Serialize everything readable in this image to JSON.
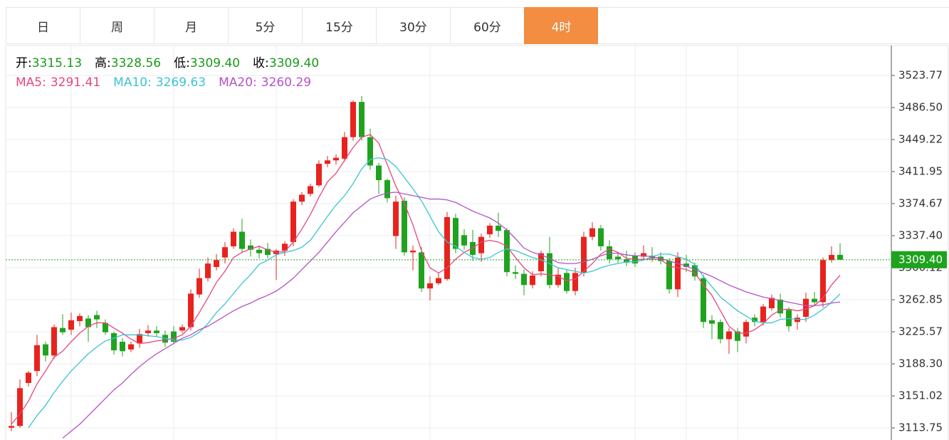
{
  "tabs": {
    "items": [
      "日",
      "周",
      "月",
      "5分",
      "15分",
      "30分",
      "60分",
      "4时"
    ],
    "active": 7,
    "active_color": "#f28d42"
  },
  "chart_data": {
    "type": "candlestick",
    "info": {
      "labels": [
        "开:",
        "高:",
        "低:",
        "收:"
      ],
      "value_labels": [
        "3315.13",
        "3328.56",
        "3309.40",
        "3309.40"
      ],
      "color": "#1a9a1a"
    },
    "up_color": "#e8231e",
    "down_color": "#1fa31f",
    "open": [
      3114,
      3116,
      3166,
      3180,
      3211,
      3198,
      3230,
      3228,
      3238,
      3241,
      3245,
      3236,
      3224,
      3214,
      3205,
      3212,
      3224,
      3227,
      3222,
      3226,
      3227,
      3231,
      3269,
      3288,
      3301,
      3312,
      3325,
      3342,
      3326,
      3321,
      3322,
      3316,
      3320,
      3330,
      3377,
      3386,
      3396,
      3421,
      3425,
      3427,
      3452,
      3493,
      3452,
      3419,
      3402,
      3337,
      3378,
      3318,
      3318,
      3276,
      3282,
      3287,
      3358,
      3338,
      3330,
      3317,
      3339,
      3349,
      3344,
      3295,
      3293,
      3280,
      3296,
      3317,
      3280,
      3294,
      3273,
      3294,
      3336,
      3346,
      3325,
      3313,
      3310,
      3314,
      3313,
      3314,
      3313,
      3308,
      3275,
      3305,
      3303,
      3288,
      3239,
      3237,
      3217,
      3226,
      3220,
      3242,
      3237,
      3253,
      3263,
      3251,
      3237,
      3243,
      3264,
      3260,
      3309,
      3315.13
    ],
    "high": [
      3132,
      3170,
      3180,
      3222,
      3214,
      3234,
      3246,
      3248,
      3247,
      3245,
      3250,
      3240,
      3226,
      3218,
      3214,
      3229,
      3233,
      3232,
      3227,
      3232,
      3234,
      3275,
      3299,
      3312,
      3316,
      3330,
      3346,
      3357,
      3333,
      3326,
      3329,
      3322,
      3331,
      3380,
      3388,
      3398,
      3425,
      3430,
      3432,
      3458,
      3495,
      3500,
      3462,
      3422,
      3404,
      3384,
      3382,
      3326,
      3324,
      3290,
      3294,
      3365,
      3363,
      3345,
      3344,
      3340,
      3352,
      3364,
      3346,
      3303,
      3298,
      3296,
      3320,
      3336,
      3300,
      3298,
      3300,
      3342,
      3353,
      3350,
      3332,
      3318,
      3320,
      3318,
      3326,
      3324,
      3318,
      3311,
      3318,
      3315,
      3306,
      3292,
      3245,
      3240,
      3230,
      3230,
      3240,
      3246,
      3258,
      3269,
      3270,
      3254,
      3246,
      3271,
      3272,
      3312,
      3325,
      3328.56
    ],
    "low": [
      3110,
      3114,
      3162,
      3174,
      3191,
      3194,
      3222,
      3222,
      3232,
      3214,
      3230,
      3222,
      3199,
      3197,
      3202,
      3207,
      3220,
      3220,
      3208,
      3211,
      3224,
      3227,
      3265,
      3284,
      3297,
      3305,
      3322,
      3318,
      3313,
      3311,
      3311,
      3286,
      3314,
      3325,
      3373,
      3383,
      3394,
      3417,
      3420,
      3424,
      3448,
      3448,
      3414,
      3386,
      3376,
      3322,
      3314,
      3297,
      3272,
      3262,
      3280,
      3285,
      3317,
      3321,
      3308,
      3307,
      3335,
      3336,
      3290,
      3287,
      3268,
      3276,
      3290,
      3276,
      3277,
      3270,
      3268,
      3290,
      3332,
      3320,
      3305,
      3306,
      3302,
      3301,
      3309,
      3307,
      3304,
      3270,
      3266,
      3295,
      3285,
      3230,
      3217,
      3212,
      3200,
      3202,
      3212,
      3232,
      3233,
      3250,
      3242,
      3226,
      3228,
      3237,
      3256,
      3254,
      3306,
      3309.4
    ],
    "close": [
      3116,
      3160,
      3178,
      3210,
      3198,
      3231,
      3225,
      3239,
      3244,
      3231,
      3240,
      3225,
      3204,
      3203,
      3211,
      3223,
      3227,
      3224,
      3213,
      3214,
      3231,
      3270,
      3288,
      3305,
      3309,
      3324,
      3342,
      3322,
      3321,
      3317,
      3315,
      3320,
      3328,
      3377,
      3385,
      3395,
      3421,
      3425,
      3428,
      3452,
      3493,
      3452,
      3419,
      3402,
      3381,
      3377,
      3318,
      3320,
      3276,
      3282,
      3288,
      3359,
      3322,
      3326,
      3315,
      3336,
      3349,
      3343,
      3295,
      3293,
      3280,
      3291,
      3317,
      3280,
      3292,
      3273,
      3294,
      3336,
      3346,
      3325,
      3310,
      3310,
      3306,
      3305,
      3317,
      3311,
      3308,
      3275,
      3312,
      3301,
      3290,
      3237,
      3235,
      3217,
      3226,
      3215,
      3237,
      3237,
      3255,
      3265,
      3247,
      3232,
      3242,
      3264,
      3260,
      3309,
      3315,
      3309.4
    ],
    "series": [
      {
        "name": "MA5:",
        "color": "#e8467c",
        "values": [
          3118,
          3130,
          3145,
          3165,
          3180,
          3196,
          3203,
          3214,
          3224,
          3232,
          3236,
          3236,
          3230,
          3224,
          3217,
          3212,
          3213,
          3215,
          3216,
          3218,
          3222,
          3232,
          3248,
          3265,
          3283,
          3296,
          3312,
          3318,
          3322,
          3325,
          3321,
          3318,
          3319,
          3330,
          3345,
          3362,
          3382,
          3400,
          3410,
          3425,
          3440,
          3452,
          3455,
          3445,
          3420,
          3395,
          3375,
          3350,
          3320,
          3300,
          3294,
          3300,
          3310,
          3318,
          3323,
          3330,
          3332,
          3330,
          3325,
          3312,
          3300,
          3292,
          3293,
          3292,
          3290,
          3285,
          3287,
          3296,
          3305,
          3316,
          3322,
          3318,
          3311,
          3310,
          3310,
          3310,
          3310,
          3302,
          3300,
          3298,
          3294,
          3280,
          3268,
          3250,
          3232,
          3224,
          3224,
          3228,
          3235,
          3245,
          3251,
          3252,
          3250,
          3252,
          3256,
          3265,
          3280,
          3291.41
        ]
      },
      {
        "name": "MA10:",
        "color": "#3cc3d3",
        "values": [
          null,
          null,
          3114,
          3128,
          3140,
          3155,
          3168,
          3180,
          3190,
          3200,
          3208,
          3215,
          3218,
          3222,
          3222,
          3222,
          3221,
          3220,
          3218,
          3216,
          3216,
          3219,
          3225,
          3235,
          3248,
          3258,
          3270,
          3282,
          3292,
          3304,
          3309,
          3315,
          3318,
          3320,
          3324,
          3332,
          3346,
          3360,
          3373,
          3384,
          3398,
          3415,
          3426,
          3428,
          3426,
          3418,
          3405,
          3392,
          3378,
          3360,
          3342,
          3330,
          3325,
          3318,
          3312,
          3310,
          3312,
          3318,
          3322,
          3320,
          3316,
          3312,
          3309,
          3305,
          3300,
          3298,
          3296,
          3294,
          3296,
          3300,
          3303,
          3305,
          3307,
          3307,
          3309,
          3313,
          3316,
          3316,
          3313,
          3310,
          3304,
          3290,
          3278,
          3266,
          3258,
          3250,
          3244,
          3238,
          3236,
          3236,
          3240,
          3241,
          3240,
          3240,
          3245,
          3252,
          3260,
          3269.63
        ]
      },
      {
        "name": "MA20:",
        "color": "#b453c4",
        "values": [
          null,
          null,
          null,
          null,
          null,
          null,
          3102,
          3110,
          3118,
          3128,
          3138,
          3148,
          3158,
          3166,
          3176,
          3185,
          3193,
          3200,
          3206,
          3212,
          3218,
          3222,
          3228,
          3232,
          3238,
          3244,
          3250,
          3255,
          3259,
          3264,
          3268,
          3273,
          3280,
          3288,
          3298,
          3308,
          3318,
          3330,
          3342,
          3353,
          3364,
          3372,
          3380,
          3384,
          3387,
          3388,
          3386,
          3384,
          3382,
          3380,
          3380,
          3379,
          3376,
          3371,
          3366,
          3362,
          3358,
          3352,
          3344,
          3334,
          3323,
          3318,
          3315,
          3311,
          3306,
          3305,
          3305,
          3307,
          3310,
          3314,
          3317,
          3317,
          3315,
          3314,
          3314,
          3313,
          3311,
          3308,
          3305,
          3302,
          3298,
          3294,
          3290,
          3285,
          3280,
          3276,
          3272,
          3269,
          3266,
          3264,
          3262,
          3260,
          3258,
          3256,
          3256,
          3257,
          3259,
          3260.29
        ]
      }
    ],
    "ylim": [
      3099.69,
      3558.56
    ],
    "yticks": [
      3113.75,
      3151.02,
      {
        "value": 3188.3,
        "label": "3188.30"
      },
      3225.57,
      3262.85,
      {
        "value": 3300.12,
        "label": "3300.12"
      },
      {
        "value": 3337.4,
        "label": "3337.40"
      },
      3374.67,
      3411.95,
      3449.22,
      {
        "value": 3486.5,
        "label": "3486.50"
      },
      3523.77
    ],
    "price_tag": {
      "value": 3309.4,
      "label": "3309.40",
      "color": "#1fa31f"
    },
    "grid": true
  }
}
